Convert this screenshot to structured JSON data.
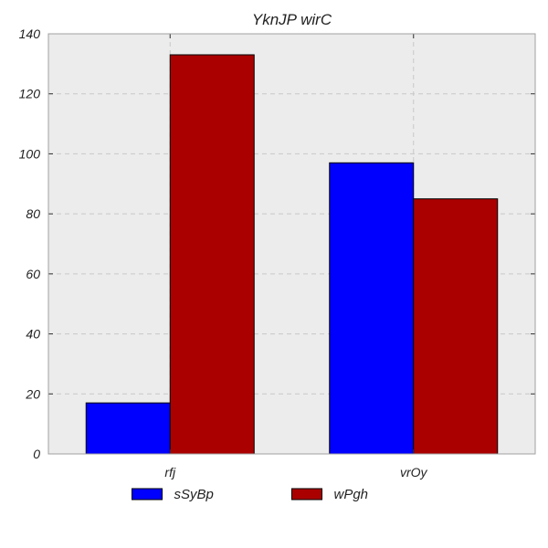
{
  "chart_data": {
    "type": "bar",
    "title": "YknJP wirC",
    "xlabel": "",
    "ylabel": "",
    "categories": [
      "rfj",
      "vrOy"
    ],
    "series": [
      {
        "name": "sSyBp",
        "values": [
          17,
          97
        ],
        "color": "#0000ff"
      },
      {
        "name": "wPgh",
        "values": [
          133,
          85
        ],
        "color": "#aa0000"
      }
    ],
    "ylim": [
      0,
      140
    ],
    "yticks": [
      0,
      20,
      40,
      60,
      80,
      100,
      120,
      140
    ],
    "grid": true,
    "grid_style": "dashed",
    "background": "#ececec",
    "legend_position": "bottom-center"
  }
}
